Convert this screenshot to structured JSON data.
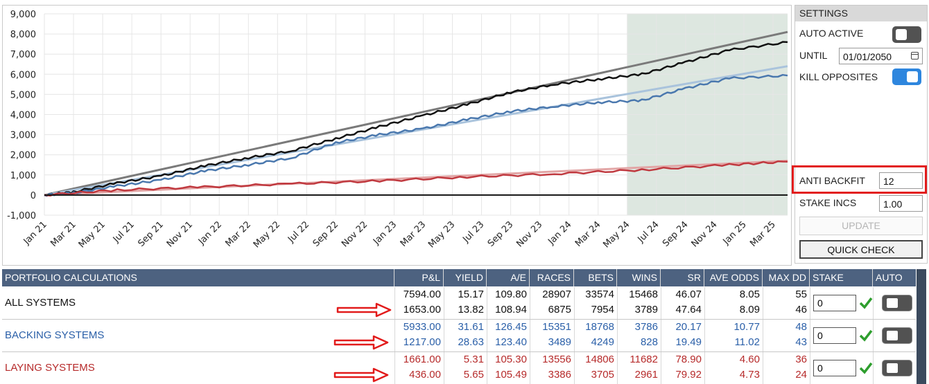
{
  "chart_data": {
    "type": "line",
    "x_tick_labels": [
      "Jan 21",
      "Mar 21",
      "May 21",
      "Jul 21",
      "Sep 21",
      "Nov 21",
      "Jan 22",
      "Mar 22",
      "May 22",
      "Jul 22",
      "Sep 22",
      "Nov 22",
      "Jan 23",
      "Mar 23",
      "May 23",
      "Jul 23",
      "Sep 23",
      "Nov 23",
      "Jan 24",
      "Mar 24",
      "May 24",
      "Jul 24",
      "Sep 24",
      "Nov 24",
      "Jan 25",
      "Mar 25"
    ],
    "y_tick_labels": [
      "9,000",
      "8,000",
      "7,000",
      "6,000",
      "5,000",
      "4,000",
      "3,000",
      "2,000",
      "1,000",
      "0",
      "-1,000"
    ],
    "ylim": [
      -1000,
      9000
    ],
    "x_range": [
      "2021-01",
      "2025-04"
    ],
    "grid": true,
    "shaded_region": {
      "from": "2024-05",
      "to": "2025-04",
      "color": "#dde7e0"
    },
    "series": [
      {
        "color": "#7a7a7a",
        "style": "trend",
        "points": [
          [
            "2021-01",
            0
          ],
          [
            "2025-04",
            8100
          ]
        ]
      },
      {
        "color": "#a9c3dc",
        "style": "trend",
        "points": [
          [
            "2021-01",
            0
          ],
          [
            "2025-04",
            6400
          ]
        ]
      },
      {
        "color": "#e2a5a5",
        "style": "trend",
        "points": [
          [
            "2021-01",
            0
          ],
          [
            "2025-04",
            1700
          ]
        ]
      },
      {
        "color": "#111111",
        "style": "actual",
        "points": [
          [
            "2021-01",
            0
          ],
          [
            "2021-03",
            150
          ],
          [
            "2021-06",
            600
          ],
          [
            "2021-09",
            950
          ],
          [
            "2021-12",
            1450
          ],
          [
            "2022-03",
            1850
          ],
          [
            "2022-06",
            2200
          ],
          [
            "2022-09",
            2800
          ],
          [
            "2022-12",
            3400
          ],
          [
            "2023-03",
            3950
          ],
          [
            "2023-06",
            4500
          ],
          [
            "2023-09",
            5100
          ],
          [
            "2023-12",
            5500
          ],
          [
            "2024-03",
            5750
          ],
          [
            "2024-06",
            6000
          ],
          [
            "2024-09",
            6600
          ],
          [
            "2024-12",
            7200
          ],
          [
            "2025-04",
            7594
          ]
        ]
      },
      {
        "color": "#4a78ae",
        "style": "actual",
        "points": [
          [
            "2021-01",
            0
          ],
          [
            "2021-03",
            100
          ],
          [
            "2021-06",
            450
          ],
          [
            "2021-09",
            750
          ],
          [
            "2021-12",
            1200
          ],
          [
            "2022-03",
            1500
          ],
          [
            "2022-06",
            1850
          ],
          [
            "2022-09",
            2600
          ],
          [
            "2022-12",
            3000
          ],
          [
            "2023-03",
            3300
          ],
          [
            "2023-06",
            3750
          ],
          [
            "2023-09",
            4150
          ],
          [
            "2023-12",
            4400
          ],
          [
            "2024-03",
            4600
          ],
          [
            "2024-06",
            4700
          ],
          [
            "2024-09",
            5300
          ],
          [
            "2024-12",
            5800
          ],
          [
            "2025-04",
            5933
          ]
        ]
      },
      {
        "color": "#c0393f",
        "style": "actual",
        "points": [
          [
            "2021-01",
            0
          ],
          [
            "2021-06",
            250
          ],
          [
            "2021-12",
            400
          ],
          [
            "2022-06",
            560
          ],
          [
            "2022-12",
            700
          ],
          [
            "2023-06",
            900
          ],
          [
            "2023-12",
            1050
          ],
          [
            "2024-06",
            1250
          ],
          [
            "2024-12",
            1500
          ],
          [
            "2025-04",
            1661
          ]
        ]
      }
    ],
    "zero_line": 0
  },
  "settings": {
    "title": "SETTINGS",
    "auto_active_label": "AUTO ACTIVE",
    "auto_active_on": false,
    "until_label": "UNTIL",
    "until_value": "01/01/2050",
    "kill_opposites_label": "KILL OPPOSITES",
    "kill_opposites_on": true,
    "anti_backfit_label": "ANTI BACKFIT",
    "anti_backfit_value": "12",
    "stake_incs_label": "STAKE INCS",
    "stake_incs_value": "1.00",
    "update_label": "UPDATE",
    "quick_check_label": "QUICK CHECK"
  },
  "table": {
    "headers": [
      "PORTFOLIO CALCULATIONS",
      "P&L",
      "YIELD",
      "A/E",
      "RACES",
      "BETS",
      "WINS",
      "SR",
      "AVE ODDS",
      "MAX DD",
      "STAKE",
      "AUTO"
    ],
    "groups": [
      {
        "label": "ALL SYSTEMS",
        "color": "#111111",
        "stake": "0",
        "rows": [
          [
            "7594.00",
            "15.17",
            "109.80",
            "28907",
            "33574",
            "15468",
            "46.07",
            "8.05",
            "55"
          ],
          [
            "1653.00",
            "13.82",
            "108.94",
            "6875",
            "7954",
            "3789",
            "47.64",
            "8.09",
            "46"
          ]
        ]
      },
      {
        "label": "BACKING SYSTEMS",
        "color": "#2a5fa8",
        "stake": "0",
        "rows": [
          [
            "5933.00",
            "31.61",
            "126.45",
            "15351",
            "18768",
            "3786",
            "20.17",
            "10.77",
            "48"
          ],
          [
            "1217.00",
            "28.63",
            "123.40",
            "3489",
            "4249",
            "828",
            "19.49",
            "11.02",
            "43"
          ]
        ]
      },
      {
        "label": "LAYING SYSTEMS",
        "color": "#b62a2a",
        "stake": "0",
        "rows": [
          [
            "1661.00",
            "5.31",
            "105.30",
            "13556",
            "14806",
            "11682",
            "78.90",
            "4.60",
            "36"
          ],
          [
            "436.00",
            "5.65",
            "105.49",
            "3386",
            "3705",
            "2961",
            "79.92",
            "4.73",
            "24"
          ]
        ]
      }
    ]
  },
  "colors": {
    "header_bg": "#4d6280",
    "highlight": "#e21b1b",
    "check": "#2e9e2e"
  }
}
